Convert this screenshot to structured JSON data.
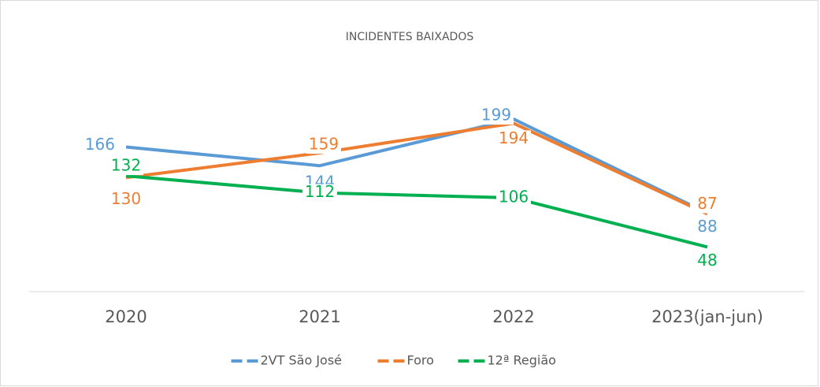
{
  "chart_data": {
    "type": "line",
    "title": "INCIDENTES BAIXADOS",
    "categories": [
      "2020",
      "2021",
      "2022",
      "2023(jan-jun)"
    ],
    "series": [
      {
        "name": "2VT São José",
        "color": "#5b9bd5",
        "values": [
          166,
          144,
          199,
          88
        ]
      },
      {
        "name": "Foro",
        "color": "#ed7d31",
        "values": [
          130,
          159,
          194,
          87
        ]
      },
      {
        "name": "12ª Região",
        "color": "#00b050",
        "values": [
          132,
          112,
          106,
          48
        ]
      }
    ],
    "ylim": [
      0,
      200
    ],
    "legend": "bottom"
  }
}
